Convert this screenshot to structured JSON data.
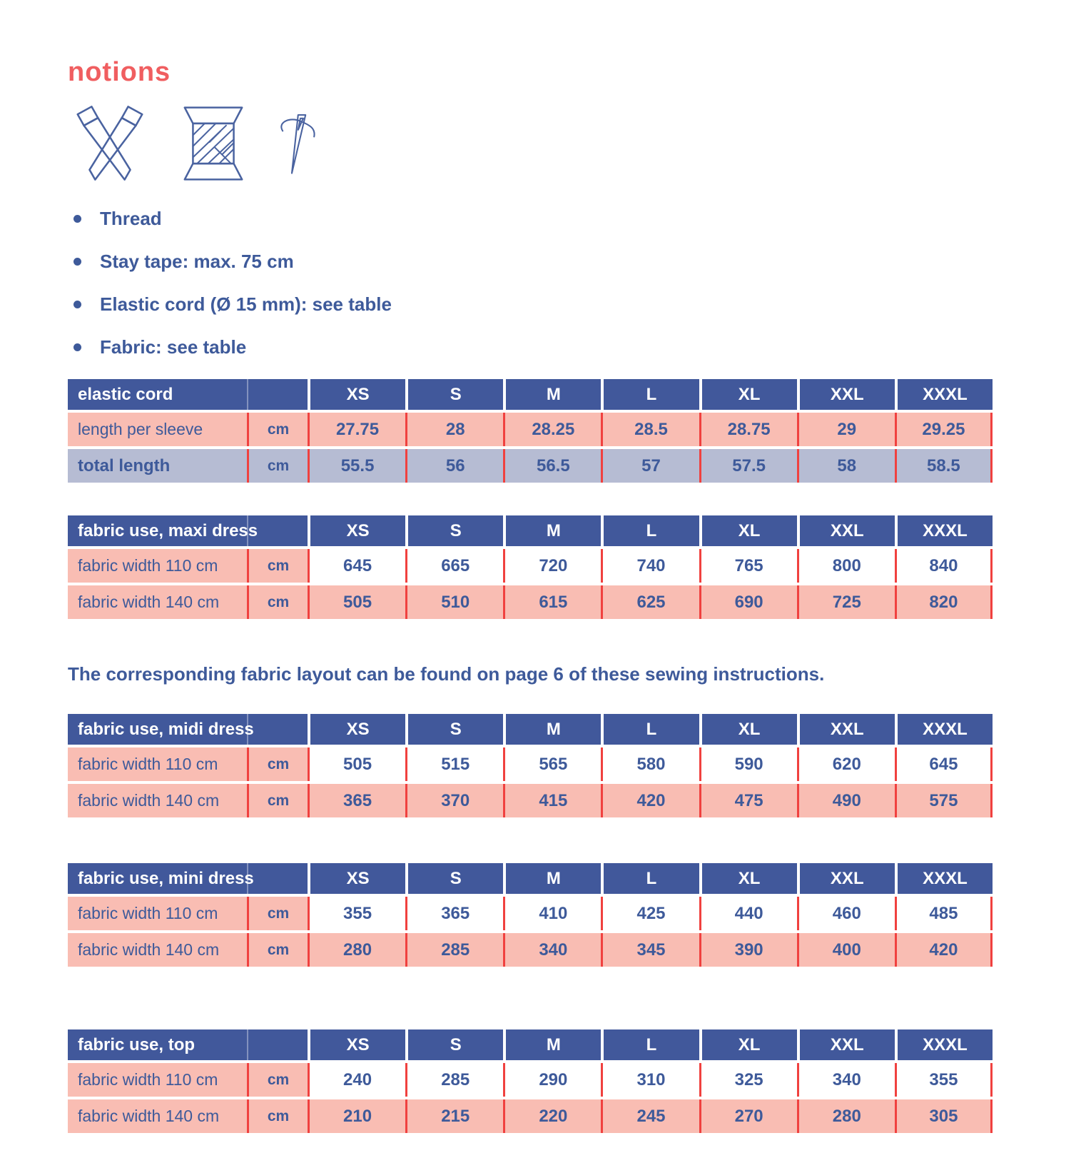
{
  "page": {
    "title": "notions",
    "colors": {
      "accent_coral": "#f05e60",
      "text_blue": "#3e5a9a",
      "header_blue": "#41589b",
      "row_salmon": "#f9bdb3",
      "row_lavender": "#b6bcd3",
      "divider_red": "#f0413f"
    }
  },
  "icons": [
    {
      "name": "scissors-icon"
    },
    {
      "name": "thread-spool-icon"
    },
    {
      "name": "needle-icon"
    }
  ],
  "bullets": [
    "Thread",
    "Stay tape: max. 75 cm",
    "Elastic cord (Ø 15 mm): see table",
    "Fabric: see table"
  ],
  "note": "The corresponding fabric layout can be found on page 6 of these sewing instructions.",
  "sizes": [
    "XS",
    "S",
    "M",
    "L",
    "XL",
    "XXL",
    "XXXL"
  ],
  "tables": [
    {
      "title": "elastic cord",
      "rows": [
        {
          "label": "length per sleeve",
          "unit": "cm",
          "label_bg": "salmon",
          "value_bg": "salmon",
          "bold_label": false,
          "values": [
            "27.75",
            "28",
            "28.25",
            "28.5",
            "28.75",
            "29",
            "29.25"
          ]
        },
        {
          "label": "total length",
          "unit": "cm",
          "label_bg": "lavender",
          "value_bg": "lavender",
          "bold_label": true,
          "values": [
            "55.5",
            "56",
            "56.5",
            "57",
            "57.5",
            "58",
            "58.5"
          ]
        }
      ]
    },
    {
      "title": "fabric use, maxi dress",
      "rows": [
        {
          "label": "fabric width 110 cm",
          "unit": "cm",
          "label_bg": "salmon",
          "value_bg": "white",
          "bold_label": false,
          "values": [
            "645",
            "665",
            "720",
            "740",
            "765",
            "800",
            "840"
          ]
        },
        {
          "label": "fabric width 140 cm",
          "unit": "cm",
          "label_bg": "salmon",
          "value_bg": "salmon",
          "bold_label": false,
          "values": [
            "505",
            "510",
            "615",
            "625",
            "690",
            "725",
            "820"
          ]
        }
      ]
    },
    {
      "title": "fabric use, midi dress",
      "rows": [
        {
          "label": "fabric width 110 cm",
          "unit": "cm",
          "label_bg": "salmon",
          "value_bg": "white",
          "bold_label": false,
          "values": [
            "505",
            "515",
            "565",
            "580",
            "590",
            "620",
            "645"
          ]
        },
        {
          "label": "fabric width 140 cm",
          "unit": "cm",
          "label_bg": "salmon",
          "value_bg": "salmon",
          "bold_label": false,
          "values": [
            "365",
            "370",
            "415",
            "420",
            "475",
            "490",
            "575"
          ]
        }
      ]
    },
    {
      "title": "fabric use, mini dress",
      "rows": [
        {
          "label": "fabric width 110 cm",
          "unit": "cm",
          "label_bg": "salmon",
          "value_bg": "white",
          "bold_label": false,
          "values": [
            "355",
            "365",
            "410",
            "425",
            "440",
            "460",
            "485"
          ]
        },
        {
          "label": "fabric width 140 cm",
          "unit": "cm",
          "label_bg": "salmon",
          "value_bg": "salmon",
          "bold_label": false,
          "values": [
            "280",
            "285",
            "340",
            "345",
            "390",
            "400",
            "420"
          ]
        }
      ]
    },
    {
      "title": "fabric use, top",
      "rows": [
        {
          "label": "fabric width 110 cm",
          "unit": "cm",
          "label_bg": "salmon",
          "value_bg": "white",
          "bold_label": false,
          "values": [
            "240",
            "285",
            "290",
            "310",
            "325",
            "340",
            "355"
          ]
        },
        {
          "label": "fabric width 140 cm",
          "unit": "cm",
          "label_bg": "salmon",
          "value_bg": "salmon",
          "bold_label": false,
          "values": [
            "210",
            "215",
            "220",
            "245",
            "270",
            "280",
            "305"
          ]
        }
      ]
    }
  ]
}
